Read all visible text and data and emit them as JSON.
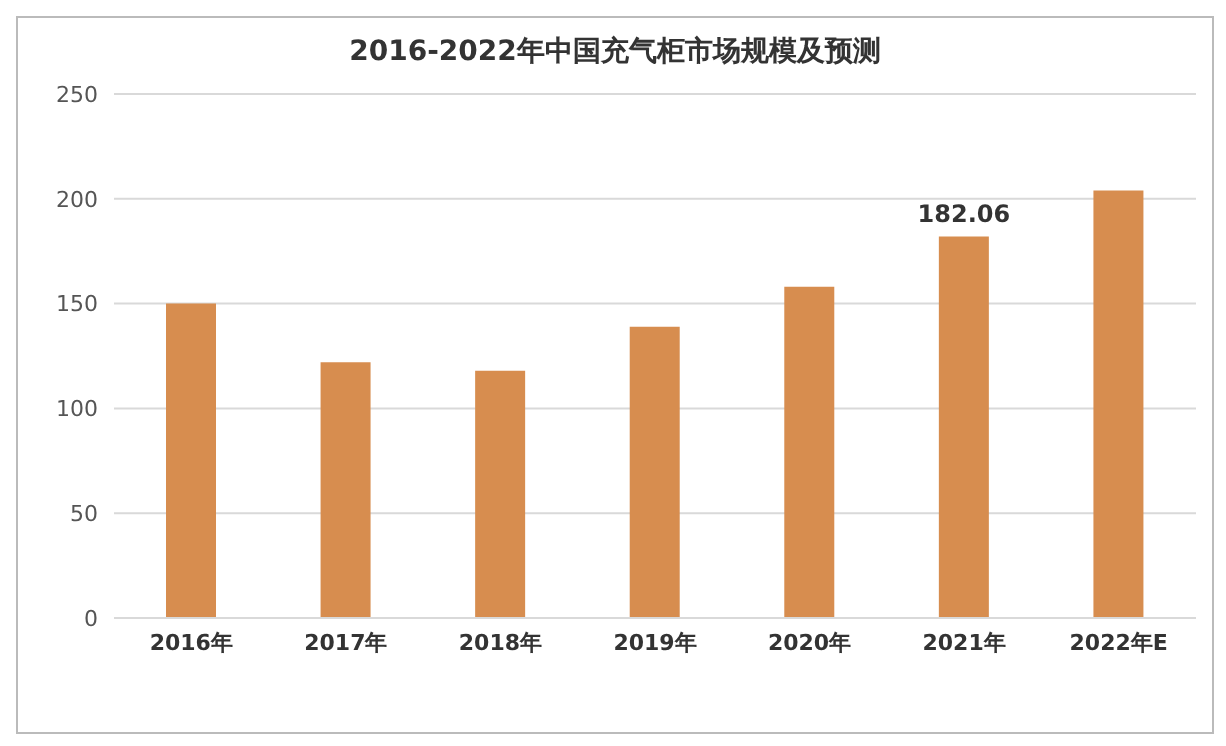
{
  "chart_data": {
    "type": "bar",
    "title": "2016-2022年中国充气柜市场规模及预测",
    "categories": [
      "2016年",
      "2017年",
      "2018年",
      "2019年",
      "2020年",
      "2021年",
      "2022年E"
    ],
    "values": [
      150,
      122,
      118,
      139,
      158,
      182.06,
      204
    ],
    "value_labels": [
      null,
      null,
      null,
      null,
      null,
      "182.06",
      null
    ],
    "color": "#d78d4f",
    "ylim": [
      0,
      250
    ],
    "yticks": [
      0,
      50,
      100,
      150,
      200,
      250
    ],
    "grid": "y",
    "legend": false
  }
}
